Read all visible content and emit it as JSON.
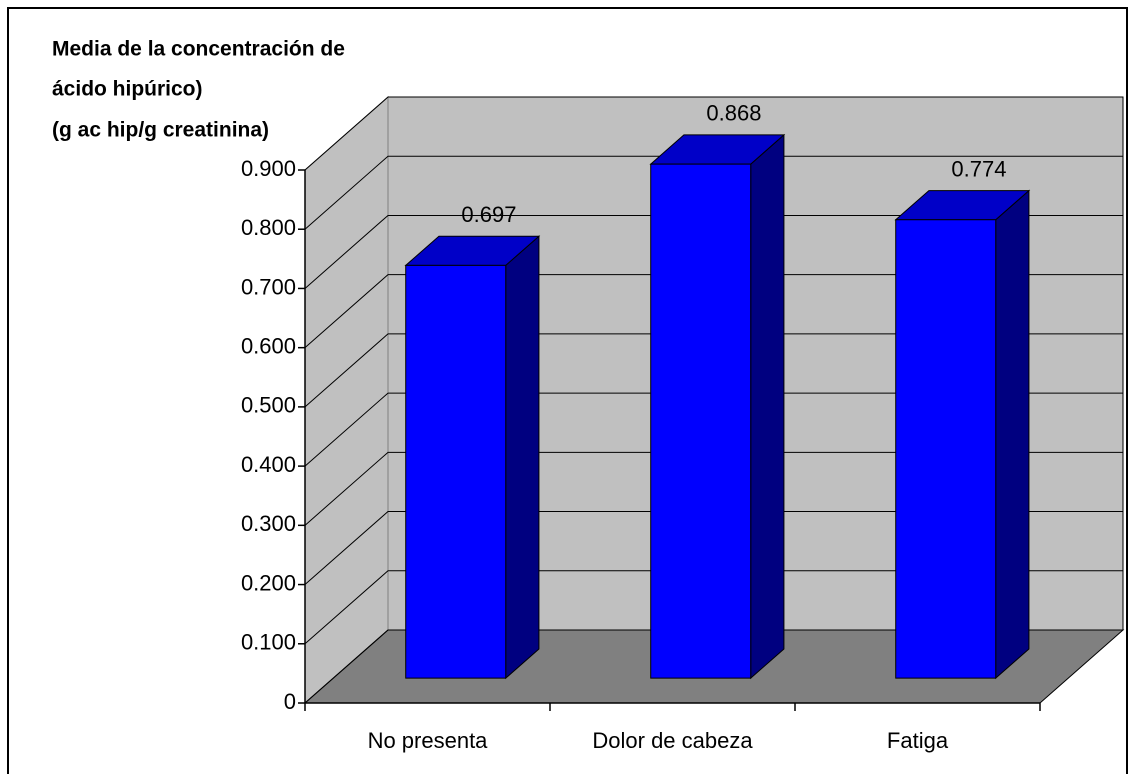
{
  "chart_data": {
    "type": "bar3d",
    "title_lines": [
      "Media de la concentración de",
      "ácido hipúrico)",
      "(g ac hip/g creatinina)"
    ],
    "categories": [
      "No presenta",
      "Dolor de cabeza",
      "Fatiga"
    ],
    "values": [
      0.697,
      0.868,
      0.774
    ],
    "color": "#0000ff",
    "ylim": [
      0,
      0.9
    ],
    "yticks": [
      0,
      {
        "value": 0.1,
        "label": "0.100"
      },
      {
        "value": 0.2,
        "label": "0.200"
      },
      {
        "value": 0.3,
        "label": "0.300"
      },
      {
        "value": 0.4,
        "label": "0.400"
      },
      {
        "value": 0.5,
        "label": "0.500"
      },
      {
        "value": 0.6,
        "label": "0.600"
      },
      {
        "value": 0.7,
        "label": "0.700"
      },
      {
        "value": 0.8,
        "label": "0.800"
      },
      {
        "value": 0.9,
        "label": "0.900"
      }
    ],
    "grid": true
  }
}
